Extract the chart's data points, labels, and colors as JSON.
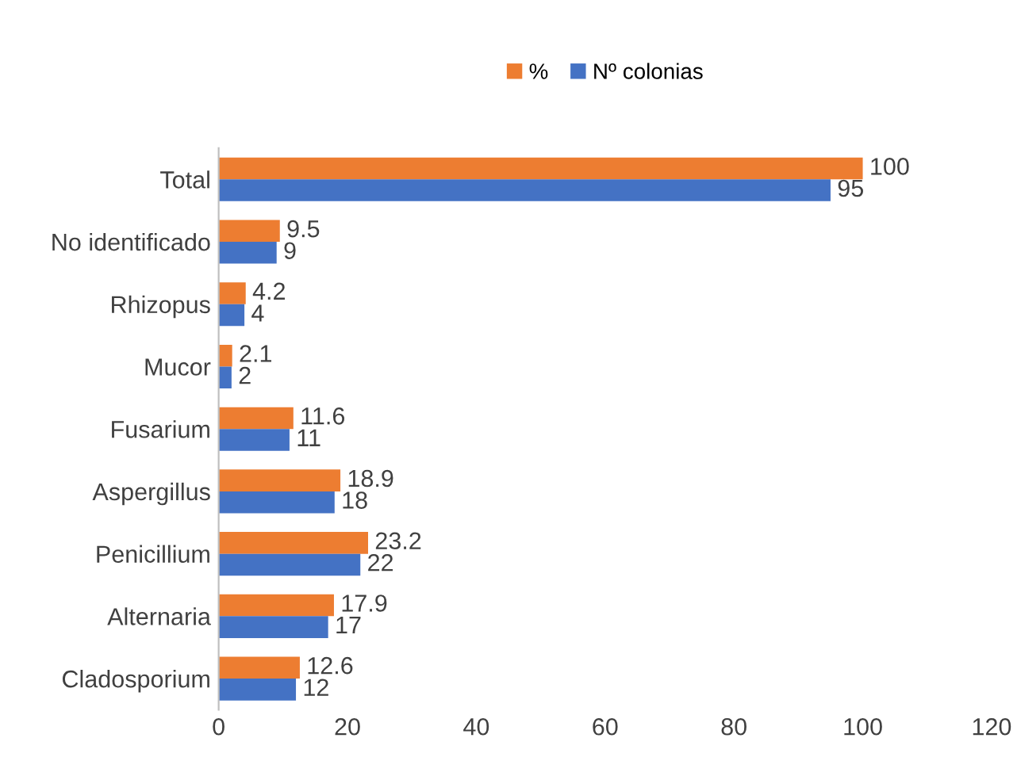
{
  "chart_data": {
    "type": "bar",
    "orientation": "horizontal",
    "categories": [
      "Total",
      "No identificado",
      "Rhizopus",
      "Mucor",
      "Fusarium",
      "Aspergillus",
      "Penicillium",
      "Alternaria",
      "Cladosporium"
    ],
    "series": [
      {
        "name": "%",
        "color": "#ed7d31",
        "values": [
          100,
          9.5,
          4.2,
          2.1,
          11.6,
          18.9,
          23.2,
          17.9,
          12.6
        ]
      },
      {
        "name": "Nº colonias",
        "color": "#4472c4",
        "values": [
          95,
          9,
          4,
          2,
          11,
          18,
          22,
          17,
          12
        ]
      }
    ],
    "xlim": [
      0,
      120
    ],
    "xticks": [
      0,
      20,
      40,
      60,
      80,
      100,
      120
    ],
    "data_labels": true,
    "legend": "top",
    "grid": false
  }
}
